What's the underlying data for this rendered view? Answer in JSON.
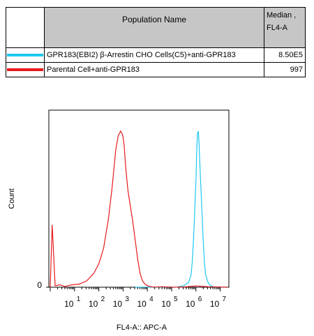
{
  "legend": {
    "header_name": "Population Name",
    "header_median_line1": "Median ,",
    "header_median_line2": "FL4-A",
    "rows": [
      {
        "name": "GPR183(EBI2) β-Arrestin CHO Cells(C5)+anti-GPR183",
        "median": "8.50E5",
        "color": "#1ec8f0"
      },
      {
        "name": "Parental Cell+anti-GPR183",
        "median": "997",
        "color": "#e8191c"
      }
    ]
  },
  "chart_data": {
    "type": "line",
    "xlabel": "FL4-A:: APC-A",
    "ylabel": "Count",
    "x_scale": "log",
    "x_range": [
      3000000,
      10000000000
    ],
    "x_ticks": [
      {
        "base": "10",
        "exp": "1"
      },
      {
        "base": "10",
        "exp": "2"
      },
      {
        "base": "10",
        "exp": "3"
      },
      {
        "base": "10",
        "exp": "4"
      },
      {
        "base": "10",
        "exp": "5"
      },
      {
        "base": "10",
        "exp": "6"
      },
      {
        "base": "10",
        "exp": "7"
      }
    ],
    "y_ticks": [
      "0"
    ],
    "ylim": [
      0,
      100
    ],
    "series": [
      {
        "name": "GPR183(EBI2) β-Arrestin CHO Cells(C5)+anti-GPR183",
        "color": "#1ec8f0",
        "log_x": [
          3.5,
          5.2,
          5.5,
          5.7,
          5.8,
          5.85,
          5.9,
          5.95,
          6.0,
          6.03,
          6.06,
          6.1,
          6.13,
          6.16,
          6.2,
          6.25,
          6.3,
          6.35,
          6.4,
          6.5,
          6.6,
          6.8,
          7.3
        ],
        "y": [
          0,
          0,
          1,
          3,
          8,
          16,
          30,
          48,
          68,
          85,
          98,
          100,
          92,
          80,
          66,
          48,
          30,
          16,
          8,
          3,
          1,
          0,
          0
        ]
      },
      {
        "name": "Parental Cell+anti-GPR183",
        "color": "#e8191c",
        "log_x": [
          0.0,
          0.08,
          0.2,
          0.4,
          0.6,
          0.9,
          1.2,
          1.5,
          1.8,
          2.0,
          2.2,
          2.4,
          2.55,
          2.7,
          2.8,
          2.9,
          2.97,
          3.0,
          3.05,
          3.1,
          3.2,
          3.3,
          3.4,
          3.5,
          3.6,
          3.7,
          3.8,
          3.9,
          4.0,
          4.1,
          4.2,
          4.3,
          4.6,
          5.0,
          5.5,
          6.0,
          6.5,
          7.3
        ],
        "y": [
          0,
          40,
          1,
          1.5,
          0.5,
          1.5,
          2,
          4,
          9,
          15,
          25,
          44,
          64,
          88,
          97,
          100,
          98,
          96,
          90,
          78,
          62,
          52,
          42,
          30,
          18,
          9,
          4,
          2,
          1,
          0.5,
          0.2,
          0.1,
          0.3,
          0,
          0.2,
          0.8,
          0.3,
          0
        ]
      }
    ]
  }
}
